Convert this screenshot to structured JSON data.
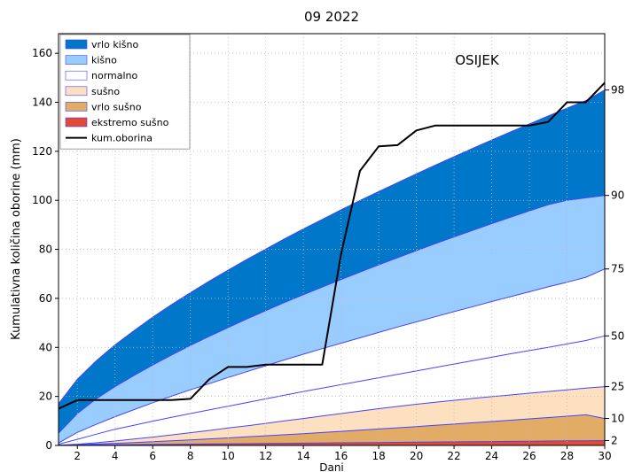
{
  "chart_data": {
    "type": "area",
    "title": "09 2022",
    "xlabel": "Dani",
    "ylabel": "Kumulativna količina oborine (mm)",
    "annotation": "OSIJEK",
    "xlim": [
      1,
      30
    ],
    "ylim": [
      0,
      168
    ],
    "x_ticks": [
      2,
      4,
      6,
      8,
      10,
      12,
      14,
      16,
      18,
      20,
      22,
      24,
      26,
      28,
      30
    ],
    "y_ticks": [
      0,
      20,
      40,
      60,
      80,
      100,
      120,
      140,
      160
    ],
    "grid": true,
    "legend_position": "top-left",
    "days": [
      1,
      2,
      3,
      4,
      5,
      6,
      7,
      8,
      9,
      10,
      11,
      12,
      13,
      14,
      15,
      16,
      17,
      18,
      19,
      20,
      21,
      22,
      23,
      24,
      25,
      26,
      27,
      28,
      29,
      30
    ],
    "percentile_labels": [
      "2",
      "10",
      "25",
      "50",
      "75",
      "90",
      "98"
    ],
    "percentile_curves": [
      [
        0.07,
        0.13,
        0.2,
        0.27,
        0.33,
        0.4,
        0.47,
        0.53,
        0.6,
        0.67,
        0.73,
        0.8,
        0.87,
        0.93,
        1.0,
        1.07,
        1.13,
        1.2,
        1.27,
        1.33,
        1.4,
        1.47,
        1.53,
        1.6,
        1.67,
        1.73,
        1.8,
        1.87,
        1.93,
        2.0
      ],
      [
        0.08,
        0.3,
        0.56,
        0.86,
        1.18,
        1.52,
        1.89,
        2.27,
        2.66,
        3.07,
        3.49,
        3.92,
        4.36,
        4.82,
        5.28,
        5.75,
        6.22,
        6.71,
        7.2,
        7.7,
        8.21,
        8.72,
        9.24,
        9.77,
        10.3,
        10.84,
        11.38,
        11.93,
        12.49,
        11.0
      ],
      [
        0.1,
        0.5,
        1.1,
        1.8,
        2.6,
        3.4,
        4.3,
        5.2,
        6.1,
        7.1,
        8.0,
        9.0,
        10.0,
        11.0,
        12.0,
        13.0,
        14.0,
        15.0,
        15.9,
        16.8,
        17.6,
        18.4,
        19.2,
        19.9,
        20.6,
        21.3,
        22.0,
        22.7,
        23.4,
        24.0
      ],
      [
        0.5,
        2.5,
        4.6,
        6.6,
        8.2,
        9.9,
        11.5,
        13.0,
        14.5,
        16.0,
        17.5,
        19.0,
        20.5,
        22.0,
        23.4,
        24.8,
        26.2,
        27.6,
        29.0,
        30.4,
        31.8,
        33.2,
        34.6,
        36.0,
        37.4,
        38.7,
        40.0,
        41.4,
        42.8,
        44.7
      ],
      [
        1.0,
        5.3,
        8.6,
        11.7,
        14.6,
        17.4,
        20.1,
        22.7,
        25.2,
        27.7,
        30.1,
        32.5,
        34.9,
        37.2,
        39.5,
        41.7,
        43.9,
        46.1,
        48.3,
        50.4,
        52.5,
        54.6,
        56.6,
        58.7,
        60.7,
        62.7,
        64.7,
        66.6,
        68.6,
        72.0
      ],
      [
        5.0,
        13.0,
        19.0,
        24.0,
        28.5,
        32.8,
        36.9,
        40.8,
        44.5,
        48.1,
        51.6,
        55.0,
        58.3,
        61.5,
        64.6,
        67.7,
        70.7,
        73.7,
        76.6,
        79.5,
        82.3,
        85.1,
        87.8,
        90.5,
        93.1,
        95.7,
        98.2,
        100.0,
        101.0,
        102.0
      ],
      [
        17.0,
        27.0,
        34.5,
        41.0,
        46.8,
        52.3,
        57.4,
        62.3,
        67.0,
        71.5,
        75.9,
        80.1,
        84.3,
        88.3,
        92.2,
        96.1,
        99.9,
        103.6,
        107.2,
        110.8,
        114.3,
        117.8,
        121.2,
        124.6,
        127.9,
        131.2,
        134.4,
        137.6,
        140.7,
        145.0
      ]
    ],
    "band_colors": [
      "#e34a33",
      "#e2ab66",
      "#fde0c0",
      "#ffffff",
      "#99ccff",
      "#0077c8"
    ],
    "band_edge_color": "#4444ff",
    "series": [
      {
        "name": "kum.oborina",
        "color": "#000000",
        "values": [
          15.0,
          18.5,
          18.5,
          18.5,
          18.5,
          18.5,
          18.5,
          19.0,
          27.0,
          32.0,
          32.0,
          33.0,
          33.0,
          33.0,
          33.0,
          78.0,
          112.0,
          122.0,
          122.5,
          128.5,
          130.5,
          130.5,
          130.5,
          130.5,
          130.5,
          130.5,
          132.0,
          140.0,
          140.0,
          148.0
        ]
      }
    ],
    "legend": [
      {
        "label": "vrlo kišno",
        "swatch": "#0077c8",
        "kind": "patch"
      },
      {
        "label": "kišno",
        "swatch": "#99ccff",
        "kind": "patch"
      },
      {
        "label": "normalno",
        "swatch": "#ffffff",
        "kind": "patch"
      },
      {
        "label": "sušno",
        "swatch": "#fde0c0",
        "kind": "patch"
      },
      {
        "label": "vrlo sušno",
        "swatch": "#e2ab66",
        "kind": "patch"
      },
      {
        "label": "ekstremo sušno",
        "swatch": "#e34a33",
        "kind": "patch"
      },
      {
        "label": "kum.oborina",
        "swatch": "#000000",
        "kind": "line"
      }
    ]
  }
}
